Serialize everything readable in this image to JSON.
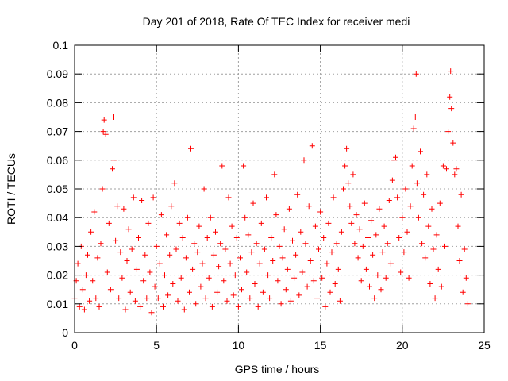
{
  "chart_data": {
    "type": "scatter",
    "title": "Day 201 of 2018, Rate Of TEC Index for receiver medi",
    "xlabel": "GPS time / hours",
    "ylabel": "ROTI / TECUs",
    "xlim": [
      0,
      25
    ],
    "ylim": [
      0,
      0.1
    ],
    "x_ticks": [
      0,
      5,
      10,
      15,
      20,
      25
    ],
    "y_ticks": [
      0,
      0.01,
      0.02,
      0.03,
      0.04,
      0.05,
      0.06,
      0.07,
      0.08,
      0.09,
      0.1
    ],
    "x_tick_labels": [
      "0",
      "5",
      "10",
      "15",
      "20",
      "25"
    ],
    "y_tick_labels": [
      "0",
      "0.01",
      "0.02",
      "0.03",
      "0.04",
      "0.05",
      "0.06",
      "0.07",
      "0.08",
      "0.09",
      "0.1"
    ],
    "grid": true,
    "marker": "+",
    "color": "#ff0000",
    "series": [
      {
        "points": [
          [
            0.0,
            0.012
          ],
          [
            0.1,
            0.018
          ],
          [
            0.2,
            0.024
          ],
          [
            0.3,
            0.009
          ],
          [
            0.4,
            0.03
          ],
          [
            0.5,
            0.015
          ],
          [
            0.6,
            0.008
          ],
          [
            0.7,
            0.02
          ],
          [
            0.8,
            0.027
          ],
          [
            0.9,
            0.011
          ],
          [
            1.0,
            0.035
          ],
          [
            1.1,
            0.018
          ],
          [
            1.2,
            0.042
          ],
          [
            1.3,
            0.012
          ],
          [
            1.4,
            0.026
          ],
          [
            1.5,
            0.009
          ],
          [
            1.6,
            0.031
          ],
          [
            1.7,
            0.05
          ],
          [
            1.75,
            0.07
          ],
          [
            1.8,
            0.074
          ],
          [
            1.9,
            0.069
          ],
          [
            2.0,
            0.021
          ],
          [
            2.1,
            0.038
          ],
          [
            2.2,
            0.015
          ],
          [
            2.3,
            0.057
          ],
          [
            2.35,
            0.075
          ],
          [
            2.4,
            0.06
          ],
          [
            2.5,
            0.032
          ],
          [
            2.6,
            0.044
          ],
          [
            2.7,
            0.012
          ],
          [
            2.8,
            0.028
          ],
          [
            2.9,
            0.019
          ],
          [
            3.0,
            0.043
          ],
          [
            3.1,
            0.008
          ],
          [
            3.2,
            0.025
          ],
          [
            3.3,
            0.036
          ],
          [
            3.4,
            0.014
          ],
          [
            3.5,
            0.029
          ],
          [
            3.6,
            0.047
          ],
          [
            3.7,
            0.011
          ],
          [
            3.8,
            0.022
          ],
          [
            3.9,
            0.033
          ],
          [
            4.0,
            0.009
          ],
          [
            4.1,
            0.046
          ],
          [
            4.2,
            0.018
          ],
          [
            4.3,
            0.027
          ],
          [
            4.4,
            0.012
          ],
          [
            4.5,
            0.038
          ],
          [
            4.6,
            0.021
          ],
          [
            4.7,
            0.007
          ],
          [
            4.8,
            0.047
          ],
          [
            4.9,
            0.016
          ],
          [
            5.0,
            0.03
          ],
          [
            5.1,
            0.012
          ],
          [
            5.2,
            0.024
          ],
          [
            5.3,
            0.041
          ],
          [
            5.4,
            0.009
          ],
          [
            5.5,
            0.02
          ],
          [
            5.6,
            0.034
          ],
          [
            5.7,
            0.013
          ],
          [
            5.8,
            0.027
          ],
          [
            5.9,
            0.044
          ],
          [
            6.0,
            0.017
          ],
          [
            6.1,
            0.052
          ],
          [
            6.2,
            0.029
          ],
          [
            6.3,
            0.011
          ],
          [
            6.4,
            0.038
          ],
          [
            6.5,
            0.019
          ],
          [
            6.6,
            0.033
          ],
          [
            6.7,
            0.008
          ],
          [
            6.8,
            0.026
          ],
          [
            6.9,
            0.04
          ],
          [
            7.0,
            0.014
          ],
          [
            7.1,
            0.064
          ],
          [
            7.2,
            0.022
          ],
          [
            7.3,
            0.031
          ],
          [
            7.4,
            0.01
          ],
          [
            7.5,
            0.028
          ],
          [
            7.6,
            0.037
          ],
          [
            7.7,
            0.016
          ],
          [
            7.8,
            0.024
          ],
          [
            7.9,
            0.05
          ],
          [
            8.0,
            0.012
          ],
          [
            8.1,
            0.033
          ],
          [
            8.2,
            0.019
          ],
          [
            8.3,
            0.04
          ],
          [
            8.4,
            0.009
          ],
          [
            8.5,
            0.027
          ],
          [
            8.6,
            0.035
          ],
          [
            8.7,
            0.014
          ],
          [
            8.8,
            0.023
          ],
          [
            8.9,
            0.031
          ],
          [
            9.0,
            0.058
          ],
          [
            9.1,
            0.018
          ],
          [
            9.2,
            0.029
          ],
          [
            9.3,
            0.011
          ],
          [
            9.4,
            0.047
          ],
          [
            9.5,
            0.024
          ],
          [
            9.6,
            0.037
          ],
          [
            9.7,
            0.013
          ],
          [
            9.8,
            0.02
          ],
          [
            9.9,
            0.033
          ],
          [
            10.0,
            0.009
          ],
          [
            10.1,
            0.026
          ],
          [
            10.2,
            0.015
          ],
          [
            10.3,
            0.058
          ],
          [
            10.4,
            0.04
          ],
          [
            10.5,
            0.021
          ],
          [
            10.6,
            0.034
          ],
          [
            10.7,
            0.012
          ],
          [
            10.8,
            0.028
          ],
          [
            10.9,
            0.045
          ],
          [
            11.0,
            0.017
          ],
          [
            11.1,
            0.031
          ],
          [
            11.2,
            0.009
          ],
          [
            11.3,
            0.024
          ],
          [
            11.4,
            0.038
          ],
          [
            11.5,
            0.014
          ],
          [
            11.6,
            0.029
          ],
          [
            11.7,
            0.047
          ],
          [
            11.8,
            0.02
          ],
          [
            11.9,
            0.012
          ],
          [
            12.0,
            0.033
          ],
          [
            12.1,
            0.025
          ],
          [
            12.2,
            0.055
          ],
          [
            12.3,
            0.041
          ],
          [
            12.4,
            0.018
          ],
          [
            12.5,
            0.03
          ],
          [
            12.6,
            0.01
          ],
          [
            12.7,
            0.026
          ],
          [
            12.8,
            0.036
          ],
          [
            12.9,
            0.015
          ],
          [
            13.0,
            0.022
          ],
          [
            13.1,
            0.043
          ],
          [
            13.2,
            0.011
          ],
          [
            13.3,
            0.032
          ],
          [
            13.4,
            0.019
          ],
          [
            13.5,
            0.027
          ],
          [
            13.6,
            0.048
          ],
          [
            13.7,
            0.013
          ],
          [
            13.8,
            0.035
          ],
          [
            13.9,
            0.021
          ],
          [
            14.0,
            0.06
          ],
          [
            14.1,
            0.031
          ],
          [
            14.2,
            0.016
          ],
          [
            14.3,
            0.044
          ],
          [
            14.4,
            0.025
          ],
          [
            14.5,
            0.065
          ],
          [
            14.6,
            0.018
          ],
          [
            14.7,
            0.037
          ],
          [
            14.8,
            0.012
          ],
          [
            14.9,
            0.029
          ],
          [
            15.0,
            0.042
          ],
          [
            15.1,
            0.019
          ],
          [
            15.2,
            0.033
          ],
          [
            15.3,
            0.009
          ],
          [
            15.4,
            0.024
          ],
          [
            15.5,
            0.038
          ],
          [
            15.6,
            0.014
          ],
          [
            15.7,
            0.028
          ],
          [
            15.8,
            0.047
          ],
          [
            15.9,
            0.017
          ],
          [
            16.0,
            0.031
          ],
          [
            16.1,
            0.022
          ],
          [
            16.2,
            0.011
          ],
          [
            16.3,
            0.035
          ],
          [
            16.4,
            0.05
          ],
          [
            16.5,
            0.058
          ],
          [
            16.6,
            0.064
          ],
          [
            16.7,
            0.052
          ],
          [
            16.8,
            0.044
          ],
          [
            16.9,
            0.038
          ],
          [
            17.0,
            0.055
          ],
          [
            17.1,
            0.031
          ],
          [
            17.2,
            0.041
          ],
          [
            17.3,
            0.026
          ],
          [
            17.4,
            0.036
          ],
          [
            17.5,
            0.018
          ],
          [
            17.6,
            0.03
          ],
          [
            17.7,
            0.045
          ],
          [
            17.8,
            0.022
          ],
          [
            17.9,
            0.033
          ],
          [
            18.0,
            0.016
          ],
          [
            18.1,
            0.039
          ],
          [
            18.2,
            0.027
          ],
          [
            18.3,
            0.012
          ],
          [
            18.4,
            0.034
          ],
          [
            18.5,
            0.02
          ],
          [
            18.6,
            0.043
          ],
          [
            18.7,
            0.015
          ],
          [
            18.8,
            0.028
          ],
          [
            18.9,
            0.037
          ],
          [
            19.0,
            0.019
          ],
          [
            19.1,
            0.031
          ],
          [
            19.2,
            0.046
          ],
          [
            19.3,
            0.024
          ],
          [
            19.4,
            0.053
          ],
          [
            19.5,
            0.06
          ],
          [
            19.6,
            0.061
          ],
          [
            19.7,
            0.047
          ],
          [
            19.8,
            0.033
          ],
          [
            19.9,
            0.021
          ],
          [
            20.0,
            0.04
          ],
          [
            20.1,
            0.028
          ],
          [
            20.2,
            0.05
          ],
          [
            20.3,
            0.035
          ],
          [
            20.4,
            0.019
          ],
          [
            20.5,
            0.044
          ],
          [
            20.6,
            0.058
          ],
          [
            20.7,
            0.071
          ],
          [
            20.8,
            0.075
          ],
          [
            20.85,
            0.09
          ],
          [
            20.9,
            0.052
          ],
          [
            21.0,
            0.04
          ],
          [
            21.1,
            0.063
          ],
          [
            21.2,
            0.031
          ],
          [
            21.3,
            0.048
          ],
          [
            21.4,
            0.026
          ],
          [
            21.5,
            0.055
          ],
          [
            21.6,
            0.037
          ],
          [
            21.7,
            0.017
          ],
          [
            21.8,
            0.043
          ],
          [
            21.9,
            0.029
          ],
          [
            22.0,
            0.012
          ],
          [
            22.1,
            0.034
          ],
          [
            22.2,
            0.022
          ],
          [
            22.3,
            0.045
          ],
          [
            22.4,
            0.016
          ],
          [
            22.5,
            0.058
          ],
          [
            22.6,
            0.03
          ],
          [
            22.7,
            0.057
          ],
          [
            22.8,
            0.07
          ],
          [
            22.9,
            0.082
          ],
          [
            22.95,
            0.091
          ],
          [
            23.0,
            0.078
          ],
          [
            23.1,
            0.066
          ],
          [
            23.2,
            0.055
          ],
          [
            23.3,
            0.057
          ],
          [
            23.4,
            0.037
          ],
          [
            23.5,
            0.025
          ],
          [
            23.6,
            0.048
          ],
          [
            23.7,
            0.014
          ],
          [
            23.8,
            0.029
          ],
          [
            23.9,
            0.019
          ],
          [
            24.0,
            0.01
          ]
        ]
      }
    ]
  }
}
